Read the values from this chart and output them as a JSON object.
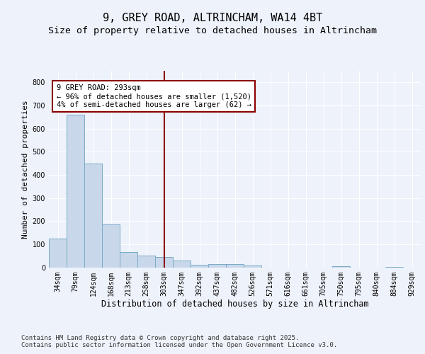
{
  "title1": "9, GREY ROAD, ALTRINCHAM, WA14 4BT",
  "title2": "Size of property relative to detached houses in Altrincham",
  "xlabel": "Distribution of detached houses by size in Altrincham",
  "ylabel": "Number of detached properties",
  "categories": [
    "34sqm",
    "79sqm",
    "124sqm",
    "168sqm",
    "213sqm",
    "258sqm",
    "303sqm",
    "347sqm",
    "392sqm",
    "437sqm",
    "482sqm",
    "526sqm",
    "571sqm",
    "616sqm",
    "661sqm",
    "705sqm",
    "750sqm",
    "795sqm",
    "840sqm",
    "884sqm",
    "929sqm"
  ],
  "values": [
    125,
    660,
    450,
    185,
    65,
    50,
    45,
    28,
    12,
    15,
    15,
    8,
    0,
    0,
    0,
    0,
    4,
    0,
    0,
    2,
    0
  ],
  "bar_color": "#c8d8ea",
  "bar_edge_color": "#7aaac8",
  "vline_x_index": 6,
  "vline_color": "#8b0000",
  "annotation_text": "9 GREY ROAD: 293sqm\n← 96% of detached houses are smaller (1,520)\n4% of semi-detached houses are larger (62) →",
  "annotation_box_color": "#ffffff",
  "annotation_box_edge": "#8b0000",
  "ylim": [
    0,
    850
  ],
  "yticks": [
    0,
    100,
    200,
    300,
    400,
    500,
    600,
    700,
    800
  ],
  "bg_color": "#eef2fa",
  "plot_bg_color": "#eef2fa",
  "footer_text": "Contains HM Land Registry data © Crown copyright and database right 2025.\nContains public sector information licensed under the Open Government Licence v3.0.",
  "title1_fontsize": 11,
  "title2_fontsize": 9.5,
  "xlabel_fontsize": 8.5,
  "ylabel_fontsize": 8,
  "tick_fontsize": 7,
  "annotation_fontsize": 7.5,
  "footer_fontsize": 6.5
}
